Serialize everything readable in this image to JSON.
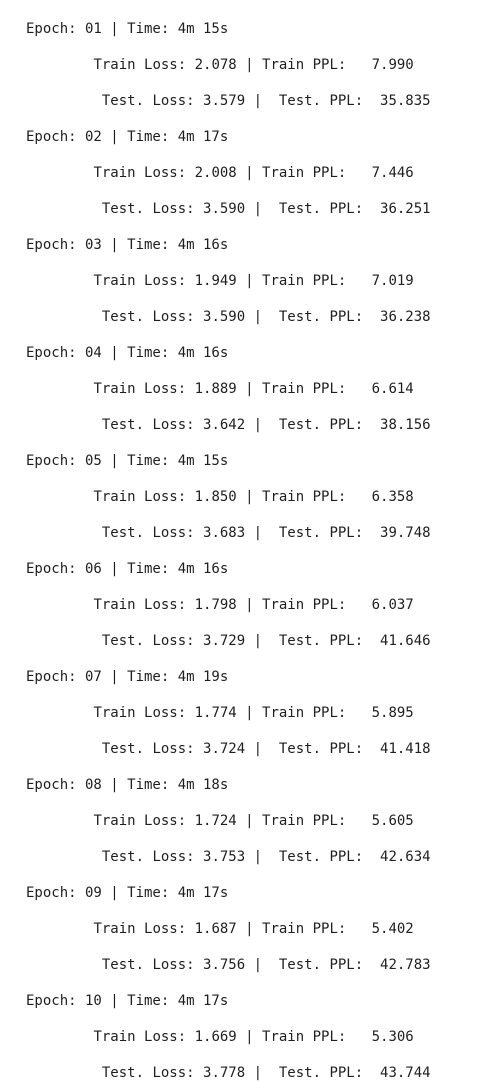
{
  "output_lines": [
    "Epoch: 01 | Time: 4m 15s",
    "\tTrain Loss: 2.078 | Train PPL:   7.990",
    "\t Test. Loss: 3.579 |  Test. PPL:  35.835",
    "Epoch: 02 | Time: 4m 17s",
    "\tTrain Loss: 2.008 | Train PPL:   7.446",
    "\t Test. Loss: 3.590 |  Test. PPL:  36.251",
    "Epoch: 03 | Time: 4m 16s",
    "\tTrain Loss: 1.949 | Train PPL:   7.019",
    "\t Test. Loss: 3.590 |  Test. PPL:  36.238",
    "Epoch: 04 | Time: 4m 16s",
    "\tTrain Loss: 1.889 | Train PPL:   6.614",
    "\t Test. Loss: 3.642 |  Test. PPL:  38.156",
    "Epoch: 05 | Time: 4m 15s",
    "\tTrain Loss: 1.850 | Train PPL:   6.358",
    "\t Test. Loss: 3.683 |  Test. PPL:  39.748",
    "Epoch: 06 | Time: 4m 16s",
    "\tTrain Loss: 1.798 | Train PPL:   6.037",
    "\t Test. Loss: 3.729 |  Test. PPL:  41.646",
    "Epoch: 07 | Time: 4m 19s",
    "\tTrain Loss: 1.774 | Train PPL:   5.895",
    "\t Test. Loss: 3.724 |  Test. PPL:  41.418",
    "Epoch: 08 | Time: 4m 18s",
    "\tTrain Loss: 1.724 | Train PPL:   5.605",
    "\t Test. Loss: 3.753 |  Test. PPL:  42.634",
    "Epoch: 09 | Time: 4m 17s",
    "\tTrain Loss: 1.687 | Train PPL:   5.402",
    "\t Test. Loss: 3.756 |  Test. PPL:  42.783",
    "Epoch: 10 | Time: 4m 17s",
    "\tTrain Loss: 1.669 | Train PPL:   5.306",
    "\t Test. Loss: 3.778 |  Test. PPL:  43.744"
  ]
}
